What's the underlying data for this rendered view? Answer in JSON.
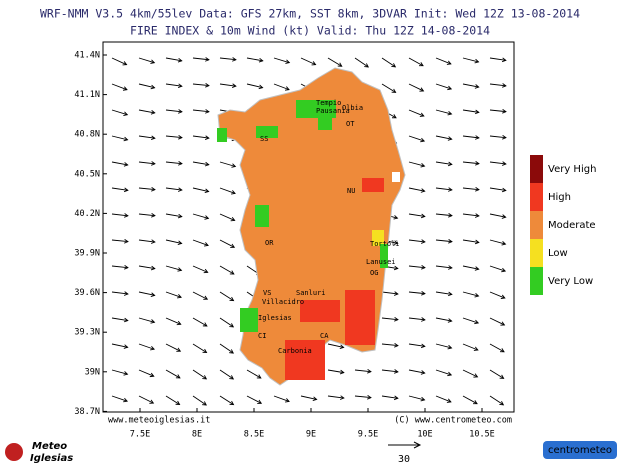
{
  "header": {
    "line1": "WRF-NMM V3.5 4km/55lev  Data: GFS 27km, SST 8km, 3DVAR  Init: Wed 12Z 13-08-2014",
    "line2": "FIRE INDEX & 10m Wind (kt)  Valid: Thu 12Z 14-08-2014"
  },
  "map": {
    "lat_labels": [
      "41.4N",
      "41.1N",
      "40.8N",
      "40.5N",
      "40.2N",
      "39.9N",
      "39.6N",
      "39.3N",
      "39N",
      "38.7N"
    ],
    "lon_labels": [
      "7.5E",
      "8E",
      "8.5E",
      "9E",
      "9.5E",
      "10E",
      "10.5E"
    ],
    "places": [
      "Tempio",
      "Pausania",
      "Olbia",
      "OT",
      "SS",
      "NU",
      "OR",
      "Tortolì",
      "Lanusei",
      "OG",
      "VS",
      "Sanluri",
      "Villacidro",
      "Iglesias",
      "CI",
      "CA",
      "Carbonia"
    ],
    "credit_left": "www.meteoiglesias.it",
    "credit_right": "(C) www.centrometeo.com"
  },
  "legend": {
    "classes": [
      "Very High",
      "High",
      "Moderate",
      "Low",
      "Very Low"
    ]
  },
  "wind_reference": "30",
  "logos": {
    "left_top": "Meteo",
    "left_bottom": "Iglesias",
    "right": "centrometeo"
  }
}
